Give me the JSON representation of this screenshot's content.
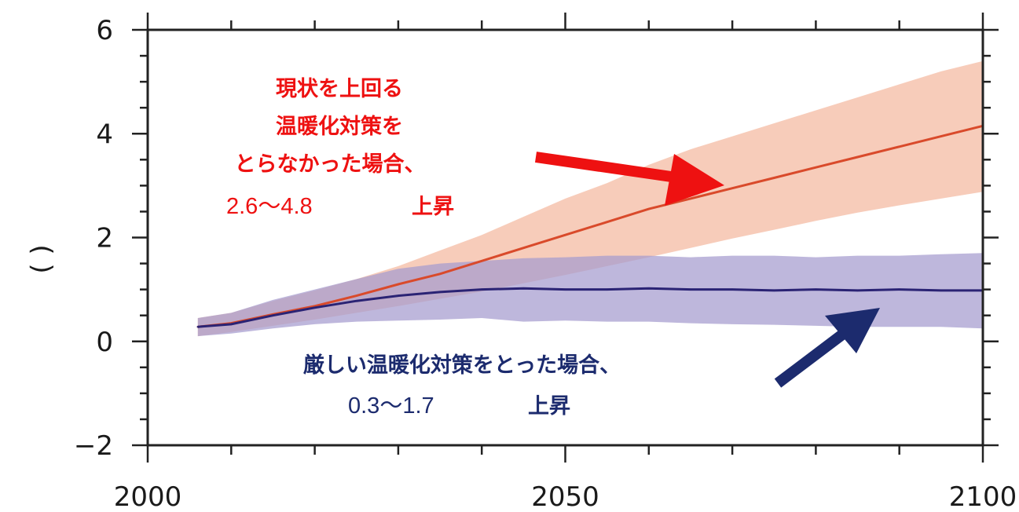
{
  "chart_data": {
    "type": "area",
    "xlim": [
      2000,
      2100
    ],
    "ylim": [
      -2,
      6
    ],
    "x_ticks": [
      2000,
      2050,
      2100
    ],
    "x_tick_labels": [
      "2000",
      "2050",
      "2100"
    ],
    "y_ticks": [
      -2,
      0,
      2,
      4,
      6
    ],
    "y_tick_labels": [
      "−2",
      "0",
      "2",
      "4",
      "6"
    ],
    "ylabel": "( )",
    "grid": false,
    "x": [
      2006,
      2010,
      2015,
      2020,
      2025,
      2030,
      2035,
      2040,
      2045,
      2050,
      2055,
      2060,
      2065,
      2070,
      2075,
      2080,
      2085,
      2090,
      2095,
      2100
    ],
    "series": [
      {
        "color": "#d94a2b",
        "band_color": "#f4b9a0",
        "values": [
          0.28,
          0.35,
          0.52,
          0.68,
          0.88,
          1.1,
          1.3,
          1.55,
          1.8,
          2.05,
          2.3,
          2.55,
          2.75,
          2.95,
          3.15,
          3.35,
          3.55,
          3.75,
          3.95,
          4.15
        ],
        "lower": [
          0.1,
          0.18,
          0.3,
          0.42,
          0.55,
          0.68,
          0.82,
          0.96,
          1.12,
          1.28,
          1.45,
          1.62,
          1.8,
          1.98,
          2.15,
          2.32,
          2.48,
          2.62,
          2.75,
          2.88
        ],
        "upper": [
          0.45,
          0.55,
          0.78,
          0.98,
          1.2,
          1.45,
          1.75,
          2.05,
          2.4,
          2.75,
          3.05,
          3.4,
          3.7,
          3.95,
          4.2,
          4.45,
          4.7,
          4.95,
          5.2,
          5.4
        ]
      },
      {
        "color": "#2a2374",
        "band_color": "#a59bcf",
        "values": [
          0.28,
          0.33,
          0.5,
          0.65,
          0.78,
          0.88,
          0.95,
          1.0,
          1.02,
          1.0,
          1.0,
          1.02,
          1.0,
          1.0,
          0.98,
          1.0,
          0.98,
          1.0,
          0.98,
          0.98
        ],
        "lower": [
          0.1,
          0.15,
          0.25,
          0.33,
          0.38,
          0.4,
          0.42,
          0.45,
          0.38,
          0.4,
          0.38,
          0.38,
          0.35,
          0.33,
          0.32,
          0.3,
          0.28,
          0.28,
          0.28,
          0.25
        ],
        "upper": [
          0.45,
          0.55,
          0.8,
          1.0,
          1.2,
          1.4,
          1.5,
          1.55,
          1.6,
          1.62,
          1.65,
          1.65,
          1.62,
          1.65,
          1.65,
          1.62,
          1.65,
          1.65,
          1.68,
          1.7
        ]
      }
    ],
    "annotations": {
      "red_lines": [
        "現状を上回る",
        "温暖化対策を",
        "とらなかった場合、"
      ],
      "red_range": "2.6～4.8",
      "red_suffix": "上昇",
      "blue_line": "厳しい温暖化対策をとった場合、",
      "blue_range": "0.3～1.7",
      "blue_suffix": "上昇"
    }
  }
}
